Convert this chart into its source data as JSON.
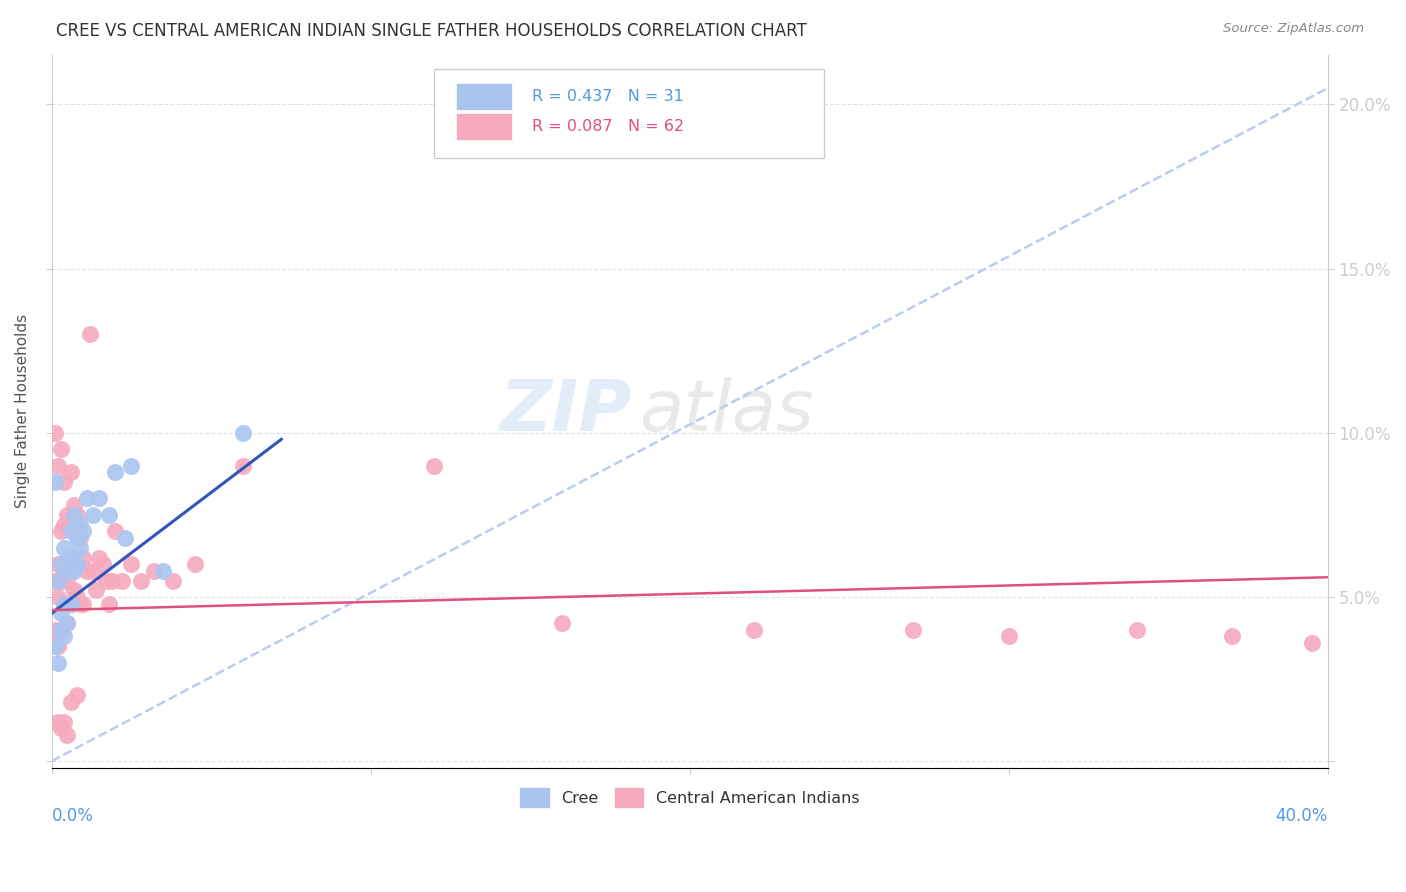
{
  "title": "CREE VS CENTRAL AMERICAN INDIAN SINGLE FATHER HOUSEHOLDS CORRELATION CHART",
  "source": "Source: ZipAtlas.com",
  "ylabel": "Single Father Households",
  "xlim": [
    0.0,
    0.4
  ],
  "ylim": [
    -0.002,
    0.215
  ],
  "yticks": [
    0.0,
    0.05,
    0.1,
    0.15,
    0.2
  ],
  "ytick_labels": [
    "",
    "5.0%",
    "10.0%",
    "15.0%",
    "20.0%"
  ],
  "xticks": [
    0.0,
    0.1,
    0.2,
    0.3,
    0.4
  ],
  "background_color": "#ffffff",
  "grid_color": "#dde3ee",
  "cree_color": "#aac4f0",
  "cai_color": "#f5aabe",
  "cree_line_color": "#3355bb",
  "cai_line_color": "#e0507a",
  "dash_color": "#bbccee",
  "cree_R": 0.437,
  "cree_N": 31,
  "cai_R": 0.087,
  "cai_N": 62,
  "watermark_zip": "ZIP",
  "watermark_atlas": "atlas",
  "cree_scatter_x": [
    0.001,
    0.001,
    0.002,
    0.002,
    0.003,
    0.003,
    0.003,
    0.004,
    0.004,
    0.004,
    0.005,
    0.005,
    0.006,
    0.006,
    0.006,
    0.007,
    0.007,
    0.008,
    0.008,
    0.009,
    0.009,
    0.01,
    0.011,
    0.013,
    0.015,
    0.018,
    0.02,
    0.023,
    0.025,
    0.035,
    0.06
  ],
  "cree_scatter_y": [
    0.035,
    0.085,
    0.03,
    0.055,
    0.04,
    0.045,
    0.06,
    0.038,
    0.048,
    0.065,
    0.042,
    0.058,
    0.048,
    0.062,
    0.07,
    0.058,
    0.075,
    0.06,
    0.068,
    0.065,
    0.072,
    0.07,
    0.08,
    0.075,
    0.08,
    0.075,
    0.088,
    0.068,
    0.09,
    0.058,
    0.1
  ],
  "cai_scatter_x": [
    0.001,
    0.001,
    0.001,
    0.002,
    0.002,
    0.002,
    0.002,
    0.003,
    0.003,
    0.003,
    0.003,
    0.004,
    0.004,
    0.004,
    0.004,
    0.005,
    0.005,
    0.005,
    0.006,
    0.006,
    0.006,
    0.007,
    0.007,
    0.007,
    0.008,
    0.008,
    0.008,
    0.009,
    0.009,
    0.01,
    0.01,
    0.011,
    0.012,
    0.013,
    0.014,
    0.015,
    0.016,
    0.017,
    0.018,
    0.019,
    0.02,
    0.022,
    0.025,
    0.028,
    0.032,
    0.038,
    0.045,
    0.06,
    0.12,
    0.16,
    0.22,
    0.27,
    0.3,
    0.34,
    0.37,
    0.395,
    0.002,
    0.003,
    0.004,
    0.005,
    0.006,
    0.008
  ],
  "cai_scatter_y": [
    0.04,
    0.055,
    0.1,
    0.035,
    0.05,
    0.06,
    0.09,
    0.04,
    0.055,
    0.07,
    0.095,
    0.048,
    0.058,
    0.072,
    0.085,
    0.042,
    0.055,
    0.075,
    0.048,
    0.058,
    0.088,
    0.052,
    0.062,
    0.078,
    0.05,
    0.06,
    0.075,
    0.048,
    0.068,
    0.048,
    0.062,
    0.058,
    0.13,
    0.058,
    0.052,
    0.062,
    0.06,
    0.055,
    0.048,
    0.055,
    0.07,
    0.055,
    0.06,
    0.055,
    0.058,
    0.055,
    0.06,
    0.09,
    0.09,
    0.042,
    0.04,
    0.04,
    0.038,
    0.04,
    0.038,
    0.036,
    0.012,
    0.01,
    0.012,
    0.008,
    0.018,
    0.02
  ],
  "cree_line_x0": 0.0,
  "cree_line_x1": 0.072,
  "cree_line_y0": 0.045,
  "cree_line_y1": 0.098,
  "cai_line_x0": 0.0,
  "cai_line_x1": 0.4,
  "cai_line_y0": 0.046,
  "cai_line_y1": 0.056,
  "dash_line_x0": 0.0,
  "dash_line_x1": 0.4,
  "dash_line_y0": 0.0,
  "dash_line_y1": 0.205
}
